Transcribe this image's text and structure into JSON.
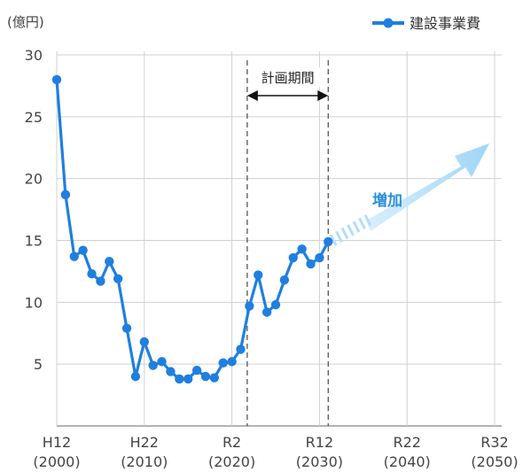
{
  "chart_data": {
    "type": "line",
    "unit_label": "(億円)",
    "ylim": [
      0,
      30
    ],
    "yticks": [
      5,
      10,
      15,
      20,
      25,
      30
    ],
    "xlim": [
      2000,
      2050
    ],
    "xticks": [
      {
        "x": 2000,
        "era": "H12",
        "year": "(2000)"
      },
      {
        "x": 2010,
        "era": "H22",
        "year": "(2010)"
      },
      {
        "x": 2020,
        "era": "R2",
        "year": "(2020)"
      },
      {
        "x": 2030,
        "era": "R12",
        "year": "(2030)"
      },
      {
        "x": 2040,
        "era": "R22",
        "year": "(2040)"
      },
      {
        "x": 2050,
        "era": "R32",
        "year": "(2050)"
      }
    ],
    "grid": true,
    "legend": "top-right",
    "series": [
      {
        "name": "建設事業費",
        "color": "#1f7fe0",
        "x": [
          2000,
          2001,
          2002,
          2003,
          2004,
          2005,
          2006,
          2007,
          2008,
          2009,
          2010,
          2011,
          2012,
          2013,
          2014,
          2015,
          2016,
          2017,
          2018,
          2019,
          2020,
          2021,
          2022,
          2023,
          2024,
          2025,
          2026,
          2027,
          2028,
          2029,
          2030,
          2031
        ],
        "values": [
          28.0,
          18.7,
          13.7,
          14.2,
          12.3,
          11.7,
          13.3,
          11.9,
          7.9,
          4.0,
          6.8,
          4.9,
          5.2,
          4.4,
          3.8,
          3.8,
          4.5,
          4.0,
          3.9,
          5.1,
          5.2,
          6.2,
          9.7,
          12.2,
          9.2,
          9.8,
          11.8,
          13.6,
          14.3,
          13.1,
          13.6,
          14.9
        ]
      }
    ],
    "planning_period": {
      "label": "計画期間",
      "start": 2021.75,
      "end": 2031
    },
    "trend_label": "増加"
  },
  "colors": {
    "line": "#1f7fe0",
    "grid": "#d0d0d0",
    "axis": "#888888",
    "arrow": "#a9d9f5"
  }
}
